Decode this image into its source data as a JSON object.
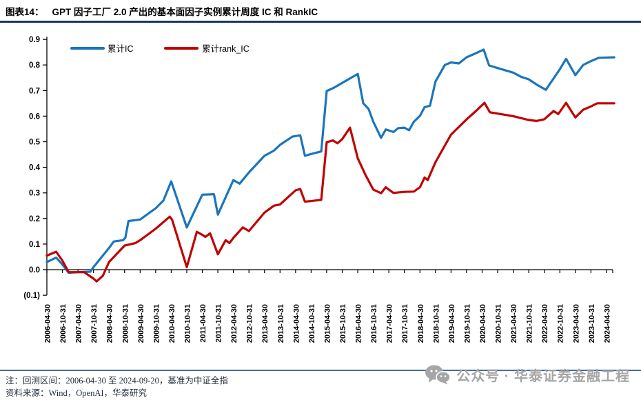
{
  "header": {
    "figure_label": "图表14：",
    "title": "GPT 因子工厂 2.0 产出的基本面因子实例累计周度 IC 和 RankIC"
  },
  "colors": {
    "title_rule": "#17375E",
    "footer_rule": "#41719C",
    "axis": "#000000",
    "ic_line": "#1B75BC",
    "rank_ic_line": "#C00000",
    "watermark": "#A6A6A6"
  },
  "chart_data": {
    "type": "line",
    "title": "GPT 因子工厂 2.0 产出的基本面因子实例累计周度 IC 和 RankIC",
    "grid": false,
    "legend_position": "top-left-inside",
    "ylim": [
      -0.1,
      0.9
    ],
    "y_tick_values": [
      0.9,
      0.8,
      0.7,
      0.6,
      0.5,
      0.4,
      0.3,
      0.2,
      0.1,
      0.0,
      -0.1
    ],
    "y_tick_labels": [
      "0.9",
      "0.8",
      "0.7",
      "0.6",
      "0.5",
      "0.4",
      "0.3",
      "0.2",
      "0.1",
      "0.0",
      "(0.1)"
    ],
    "x_tick_labels": [
      "2006-04-30",
      "2006-10-31",
      "2007-04-30",
      "2007-10-31",
      "2008-04-30",
      "2008-10-31",
      "2009-04-30",
      "2009-10-31",
      "2010-04-30",
      "2010-10-31",
      "2011-04-30",
      "2011-10-31",
      "2012-04-30",
      "2012-10-31",
      "2013-04-30",
      "2013-10-31",
      "2014-04-30",
      "2014-10-31",
      "2015-04-30",
      "2015-10-31",
      "2016-04-30",
      "2016-10-31",
      "2017-04-30",
      "2017-10-31",
      "2018-04-30",
      "2018-10-31",
      "2019-04-30",
      "2019-10-31",
      "2020-04-30",
      "2020-10-31",
      "2021-04-30",
      "2021-10-31",
      "2022-04-30",
      "2022-10-31",
      "2023-04-30",
      "2023-10-31",
      "2024-04-30"
    ],
    "x_note": "points use fractional index into x_tick_labels (0 = 2006-04-30, 36 = 2024-04-30, series end 2024-09-20)",
    "series": [
      {
        "name": "累计IC",
        "color": "#1B75BC",
        "points": [
          [
            0,
            0.03
          ],
          [
            0.6,
            0.047
          ],
          [
            1,
            0.02
          ],
          [
            1.4,
            -0.012
          ],
          [
            2,
            -0.01
          ],
          [
            2.8,
            -0.008
          ],
          [
            3,
            0.01
          ],
          [
            4,
            0.085
          ],
          [
            4.3,
            0.11
          ],
          [
            4.9,
            0.115
          ],
          [
            5.05,
            0.125
          ],
          [
            5.25,
            0.19
          ],
          [
            6,
            0.196
          ],
          [
            7,
            0.24
          ],
          [
            7.5,
            0.27
          ],
          [
            8,
            0.345
          ],
          [
            9,
            0.165
          ],
          [
            10,
            0.293
          ],
          [
            10.75,
            0.295
          ],
          [
            11,
            0.215
          ],
          [
            12,
            0.35
          ],
          [
            12.4,
            0.336
          ],
          [
            13,
            0.38
          ],
          [
            14,
            0.445
          ],
          [
            14.6,
            0.465
          ],
          [
            15,
            0.488
          ],
          [
            15.8,
            0.52
          ],
          [
            16.3,
            0.525
          ],
          [
            16.6,
            0.445
          ],
          [
            17,
            0.452
          ],
          [
            17.65,
            0.462
          ],
          [
            18,
            0.698
          ],
          [
            18.5,
            0.712
          ],
          [
            19,
            0.73
          ],
          [
            20,
            0.765
          ],
          [
            20.35,
            0.65
          ],
          [
            20.7,
            0.628
          ],
          [
            21,
            0.578
          ],
          [
            21.5,
            0.515
          ],
          [
            21.8,
            0.548
          ],
          [
            22.3,
            0.538
          ],
          [
            22.6,
            0.553
          ],
          [
            23,
            0.555
          ],
          [
            23.3,
            0.545
          ],
          [
            23.6,
            0.578
          ],
          [
            24,
            0.601
          ],
          [
            24.3,
            0.635
          ],
          [
            24.65,
            0.641
          ],
          [
            25,
            0.735
          ],
          [
            25.6,
            0.8
          ],
          [
            26,
            0.81
          ],
          [
            26.5,
            0.806
          ],
          [
            27,
            0.83
          ],
          [
            27.6,
            0.846
          ],
          [
            28.1,
            0.86
          ],
          [
            28.45,
            0.798
          ],
          [
            29,
            0.788
          ],
          [
            30,
            0.77
          ],
          [
            30.5,
            0.754
          ],
          [
            31,
            0.744
          ],
          [
            31.6,
            0.72
          ],
          [
            32.1,
            0.703
          ],
          [
            33,
            0.783
          ],
          [
            33.4,
            0.824
          ],
          [
            34,
            0.76
          ],
          [
            34.5,
            0.8
          ],
          [
            35,
            0.815
          ],
          [
            35.5,
            0.828
          ],
          [
            36.5,
            0.83
          ]
        ]
      },
      {
        "name": "累计rank_IC",
        "color": "#C00000",
        "points": [
          [
            0,
            0.055
          ],
          [
            0.6,
            0.07
          ],
          [
            1,
            0.035
          ],
          [
            1.4,
            -0.01
          ],
          [
            2.4,
            -0.01
          ],
          [
            3,
            -0.035
          ],
          [
            3.2,
            -0.046
          ],
          [
            3.6,
            -0.024
          ],
          [
            4,
            0.03
          ],
          [
            5,
            0.094
          ],
          [
            5.7,
            0.104
          ],
          [
            6,
            0.115
          ],
          [
            7,
            0.16
          ],
          [
            7.9,
            0.207
          ],
          [
            8.05,
            0.196
          ],
          [
            9,
            0.01
          ],
          [
            9.65,
            0.148
          ],
          [
            10,
            0.136
          ],
          [
            10.2,
            0.128
          ],
          [
            10.5,
            0.142
          ],
          [
            11,
            0.06
          ],
          [
            11.5,
            0.115
          ],
          [
            11.75,
            0.104
          ],
          [
            12,
            0.124
          ],
          [
            12.6,
            0.165
          ],
          [
            13,
            0.151
          ],
          [
            14,
            0.223
          ],
          [
            14.6,
            0.25
          ],
          [
            15,
            0.255
          ],
          [
            16,
            0.31
          ],
          [
            16.3,
            0.315
          ],
          [
            16.6,
            0.266
          ],
          [
            17,
            0.268
          ],
          [
            17.65,
            0.273
          ],
          [
            18,
            0.498
          ],
          [
            18.4,
            0.505
          ],
          [
            18.7,
            0.494
          ],
          [
            19,
            0.51
          ],
          [
            19.5,
            0.555
          ],
          [
            20,
            0.435
          ],
          [
            20.5,
            0.37
          ],
          [
            21,
            0.313
          ],
          [
            21.5,
            0.299
          ],
          [
            21.8,
            0.322
          ],
          [
            22,
            0.313
          ],
          [
            22.3,
            0.3
          ],
          [
            23,
            0.304
          ],
          [
            23.6,
            0.305
          ],
          [
            24,
            0.322
          ],
          [
            24.3,
            0.36
          ],
          [
            24.5,
            0.35
          ],
          [
            25,
            0.42
          ],
          [
            26,
            0.528
          ],
          [
            27,
            0.587
          ],
          [
            27.6,
            0.62
          ],
          [
            28.15,
            0.652
          ],
          [
            28.5,
            0.615
          ],
          [
            29,
            0.61
          ],
          [
            30,
            0.6
          ],
          [
            31,
            0.585
          ],
          [
            31.5,
            0.581
          ],
          [
            32,
            0.588
          ],
          [
            32.6,
            0.62
          ],
          [
            32.9,
            0.608
          ],
          [
            33.4,
            0.652
          ],
          [
            34,
            0.595
          ],
          [
            34.5,
            0.625
          ],
          [
            35,
            0.638
          ],
          [
            35.4,
            0.65
          ],
          [
            36.5,
            0.65
          ]
        ]
      }
    ]
  },
  "footer": {
    "note": "注：回测区间：2006-04-30 至 2024-09-20，基准为中证全指",
    "source": "资料来源：Wind，OpenAI，华泰研究",
    "watermark": "公众号 · 华泰证券金融工程"
  }
}
